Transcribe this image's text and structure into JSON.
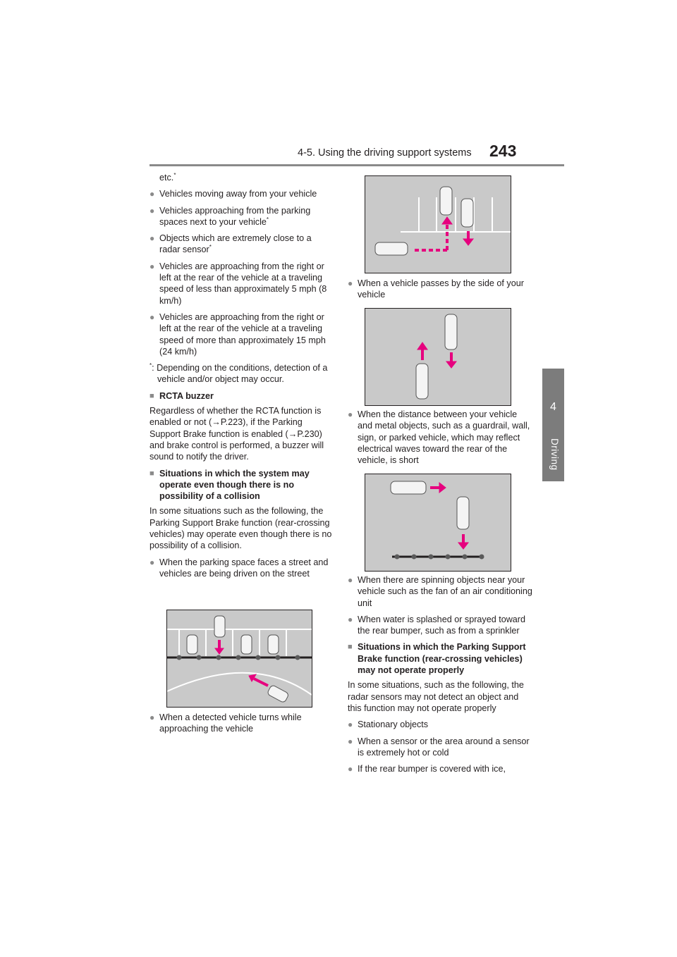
{
  "header": {
    "section_title": "4-5. Using the driving support systems",
    "page_number": "243"
  },
  "side_tab": {
    "number": "4",
    "label": "Driving"
  },
  "left_column": {
    "etc_line": "etc.",
    "bullets_a": [
      "Vehicles moving away from your vehicle",
      "Vehicles approaching from the parking spaces next to your vehicle",
      "Objects which are extremely close to a radar sensor",
      "Vehicles are approaching from the right or left at the rear of the vehicle at a traveling speed of less than approximately 5 mph (8 km/h)",
      "Vehicles are approaching from the right or left at the rear of the vehicle at a traveling speed of more than approximately 15 mph (24 km/h)"
    ],
    "footnote_mark": "*",
    "footnote": ": Depending on the conditions, detection of a vehicle and/or object may occur.",
    "rcta_heading": "RCTA buzzer",
    "rcta_text_1": "Regardless of whether the RCTA function is enabled or not (",
    "rcta_ref_1": "P.223",
    "rcta_text_2": "), if the Parking Support Brake function is enabled (",
    "rcta_ref_2": "P.230",
    "rcta_text_3": ") and brake control is performed, a buzzer will sound to notify the driver.",
    "situations_heading": "Situations in which the system may operate even though there is no possibility of a collision",
    "situations_text": "In some situations such as the following, the Parking Support Brake function (rear-crossing vehicles) may operate even though there is no possibility of a collision.",
    "bullet_street": "When the parking space faces a street and vehicles are being driven on the street",
    "bullet_turns": "When a detected vehicle turns while approaching the vehicle"
  },
  "right_column": {
    "bullet_passes": "When a vehicle passes by the side of your vehicle",
    "bullet_distance": "When the distance between your vehicle and metal objects, such as a guardrail, wall, sign, or parked vehicle, which may reflect electrical waves toward the rear of the vehicle, is short",
    "bullet_spinning": "When there are spinning objects near your vehicle such as the fan of an air conditioning unit",
    "bullet_water": "When water is splashed or sprayed toward the rear bumper, such as from a sprinkler",
    "not_operate_heading": "Situations in which the Parking Support Brake function (rear-crossing vehicles) may not operate properly",
    "not_operate_text": "In some situations, such as the following, the radar sensors may not detect an object and this function may not operate properly",
    "bullets_b": [
      "Stationary objects",
      "When a sensor or the area around a sensor is extremely hot or cold",
      "If the rear bumper is covered with ice,"
    ]
  },
  "colors": {
    "arrow": "#e6007e",
    "figure_bg": "#c9c9c9",
    "tab": "#7c7c7c"
  },
  "arrow_glyph": "→"
}
